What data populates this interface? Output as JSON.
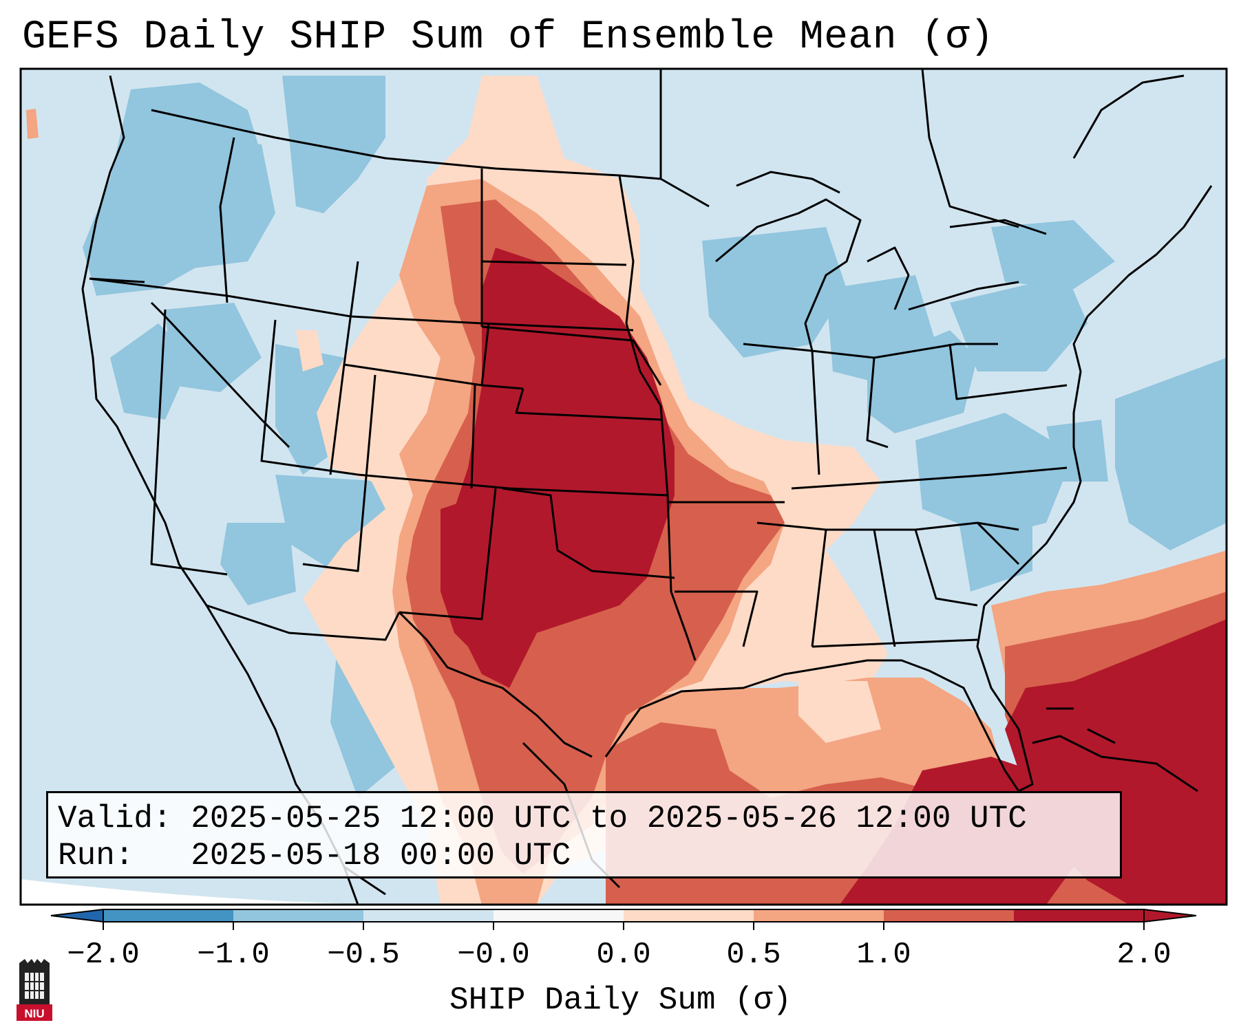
{
  "title": "GEFS Daily SHIP Sum of Ensemble Mean (σ)",
  "info": {
    "valid_label": "Valid:",
    "valid_value": "2025-05-25 12:00 UTC to 2025-05-26 12:00 UTC",
    "run_label": "Run:",
    "run_value": "2025-05-18 00:00 UTC"
  },
  "colorbar": {
    "label": "SHIP Daily Sum (σ)",
    "ticks": [
      "−2.0",
      "−1.0",
      "−0.5",
      "−0.0",
      "0.0",
      "0.5",
      "1.0",
      "2.0"
    ],
    "levels": [
      -2.0,
      -1.0,
      -0.5,
      0.0,
      0.0,
      0.5,
      1.0,
      2.0
    ],
    "colors": [
      "#4393c3",
      "#92c5de",
      "#d1e5f0",
      "#f7f7f7",
      "#fddbc7",
      "#f4a582",
      "#d6604d",
      "#b2182b"
    ],
    "extend_low_color": "#2166ac",
    "extend_high_color": "#b2182b"
  },
  "logo": {
    "text": "NIU",
    "color": "#c8102e"
  }
}
